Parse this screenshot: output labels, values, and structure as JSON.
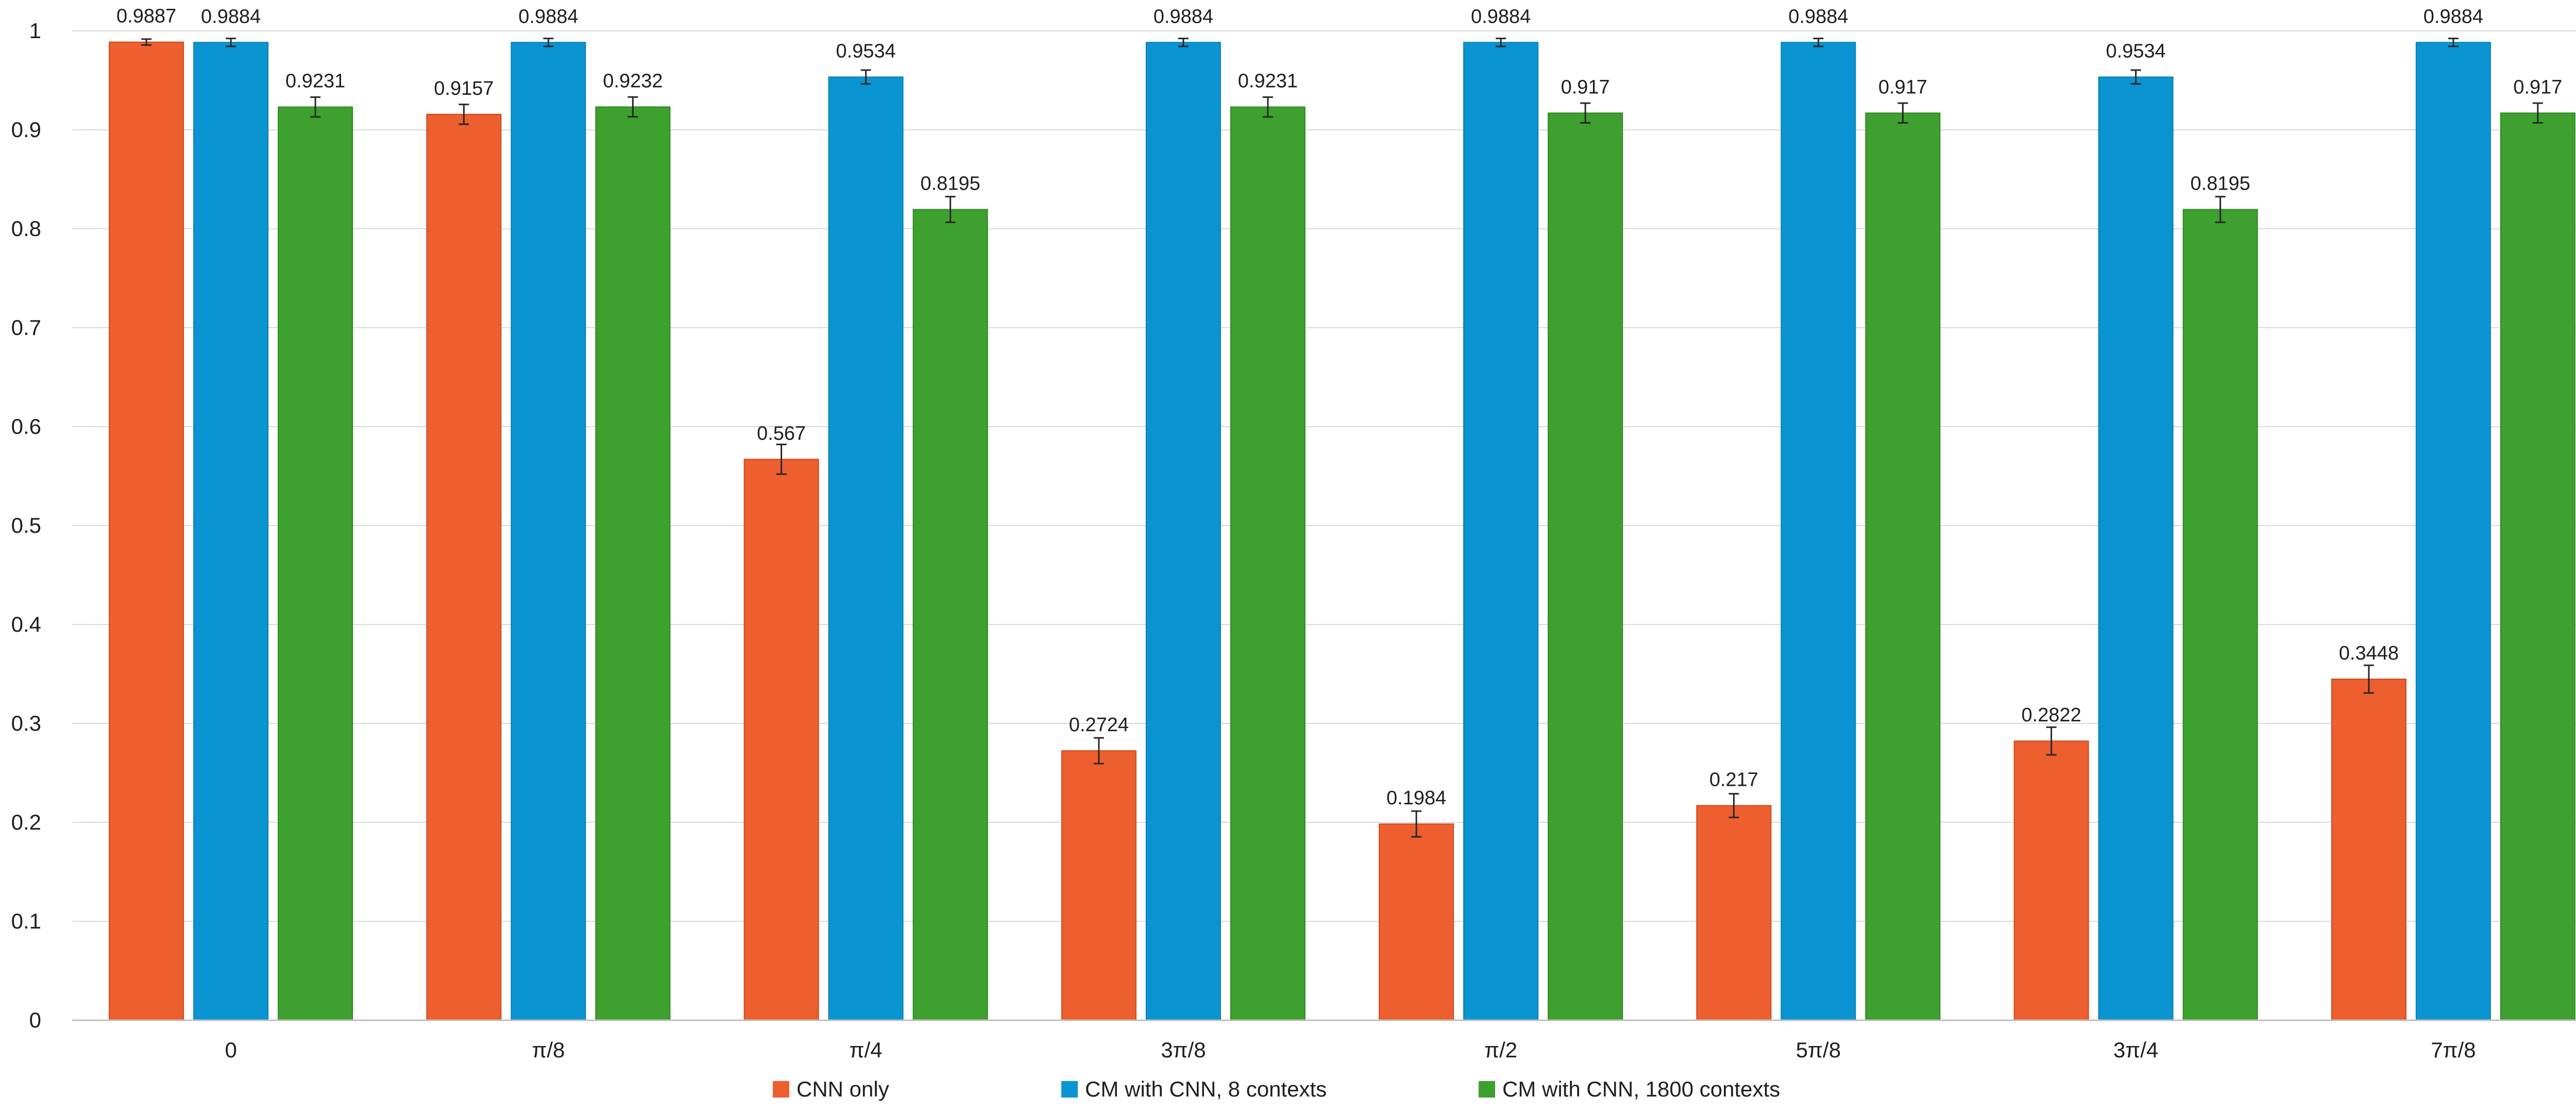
{
  "chart_data": {
    "type": "bar",
    "title": "",
    "xlabel": "",
    "ylabel": "",
    "ylim": [
      0,
      1
    ],
    "yticks": [
      0,
      0.1,
      0.2,
      0.3,
      0.4,
      0.5,
      0.6,
      0.7,
      0.8,
      0.9,
      1
    ],
    "ytick_labels": [
      "0",
      "0.1",
      "0.2",
      "0.3",
      "0.4",
      "0.5",
      "0.6",
      "0.7",
      "0.8",
      "0.9",
      "1"
    ],
    "grid": true,
    "legend_position": "bottom",
    "categories": [
      "0",
      "π/8",
      "π/4",
      "3π/8",
      "π/2",
      "5π/8",
      "3π/4",
      "7π/8"
    ],
    "series": [
      {
        "name": "CNN only",
        "color": "#ED5F2E",
        "border": "#C84C22",
        "values": [
          0.9887,
          0.9157,
          0.567,
          0.2724,
          0.1984,
          0.217,
          0.2822,
          0.3448
        ],
        "labels": [
          "0.9887",
          "0.9157",
          "0.567",
          "0.2724",
          "0.1984",
          "0.217",
          "0.2822",
          "0.3448"
        ],
        "errors": [
          0.003,
          0.01,
          0.015,
          0.013,
          0.013,
          0.012,
          0.014,
          0.014
        ]
      },
      {
        "name": "CM with CNN, 8 contexts",
        "color": "#0A95D2",
        "border": "#0A7EB5",
        "values": [
          0.9884,
          0.9884,
          0.9534,
          0.9884,
          0.9884,
          0.9884,
          0.9534,
          0.9884
        ],
        "labels": [
          "0.9884",
          "0.9884",
          "0.9534",
          "0.9884",
          "0.9884",
          "0.9884",
          "0.9534",
          "0.9884"
        ],
        "errors": [
          0.004,
          0.004,
          0.007,
          0.004,
          0.004,
          0.004,
          0.007,
          0.004
        ]
      },
      {
        "name": "CM with CNN, 1800 contexts",
        "color": "#3EA02E",
        "border": "#2E8A22",
        "values": [
          0.9231,
          0.9232,
          0.8195,
          0.9231,
          0.917,
          0.917,
          0.8195,
          0.917
        ],
        "labels": [
          "0.9231",
          "0.9232",
          "0.8195",
          "0.9231",
          "0.917",
          "0.917",
          "0.8195",
          "0.917"
        ],
        "errors": [
          0.01,
          0.01,
          0.013,
          0.01,
          0.01,
          0.01,
          0.013,
          0.01
        ]
      }
    ]
  }
}
